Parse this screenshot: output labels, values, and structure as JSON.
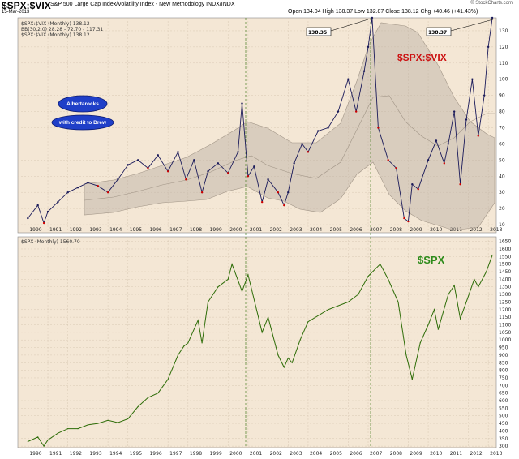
{
  "header": {
    "title": "$SPX:$VIX",
    "subtitle": "S&P 500 Large Cap Index/Volatility Index - New Methodology  INDX/INDX",
    "date": "15-Mar-2013",
    "ohlc": "Open 134.04  High 138.37  Low 132.87  Close 138.12  Chg +40.46 (+41.43%)",
    "credit": "© StockCharts.com"
  },
  "colors": {
    "background": "#f4e7d5",
    "price_line_top": "#1a1a5a",
    "down_bar": "#cc0000",
    "bollinger_fill": "#b9ada2",
    "bollinger_line": "#a09486",
    "spx_line": "#2e6d08",
    "title_red": "#cc1111",
    "title_green": "#2e8b1b",
    "oval_blue": "#1f3fc8",
    "oval_text": "#ffffff"
  },
  "chart_data": [
    {
      "type": "line",
      "title": "$SPX:$VIX",
      "legend": [
        "$SPX:$VIX (Monthly) 138.12",
        "BB(30,2.0) 28.28 - 72.70 - 117.31",
        "$SPX:$VIX (Monthly) 138.12"
      ],
      "annotations": [
        "138.35",
        "138.37",
        "Albertarocks",
        "with credit to Drew",
        "$SPX:$VIX"
      ],
      "x_ticks": [
        "1990",
        "1991",
        "1992",
        "1993",
        "1994",
        "1995",
        "1996",
        "1997",
        "1998",
        "1999",
        "2000",
        "2001",
        "2002",
        "2003",
        "2004",
        "2005",
        "2006",
        "2007",
        "2008",
        "2009",
        "2010",
        "2011",
        "2012",
        "2013"
      ],
      "y_ticks": [
        10,
        20,
        30,
        40,
        50,
        60,
        70,
        80,
        90,
        100,
        110,
        120,
        130
      ],
      "ylim": [
        5,
        138
      ],
      "xlim": [
        1989.5,
        2013.4
      ],
      "series": [
        {
          "x": [
            1990.0,
            1990.5,
            1990.8,
            1991.0,
            1991.5,
            1992.0,
            1992.5,
            1993.0,
            1993.5,
            1994.0,
            1994.5,
            1995.0,
            1995.5,
            1996.0,
            1996.5,
            1997.0,
            1997.5,
            1997.9,
            1998.3,
            1998.7,
            1999.0,
            1999.5,
            2000.0,
            2000.5,
            2000.7,
            2001.0,
            2001.3,
            2001.7,
            2002.0,
            2002.5,
            2002.8,
            2003.0,
            2003.3,
            2003.7,
            2004.0,
            2004.5,
            2005.0,
            2005.5,
            2006.0,
            2006.4,
            2006.8,
            2007.0,
            2007.2,
            2007.5,
            2008.0,
            2008.4,
            2008.8,
            2009.0,
            2009.2,
            2009.5,
            2010.0,
            2010.4,
            2010.8,
            2011.0,
            2011.3,
            2011.6,
            2011.9,
            2012.2,
            2012.5,
            2012.8,
            2013.0,
            2013.2
          ],
          "values": [
            14,
            22,
            11,
            18,
            24,
            30,
            33,
            36,
            34,
            30,
            38,
            47,
            50,
            45,
            53,
            43,
            55,
            38,
            50,
            30,
            43,
            48,
            42,
            55,
            85,
            40,
            46,
            24,
            38,
            30,
            22,
            30,
            48,
            60,
            55,
            68,
            70,
            80,
            100,
            80,
            105,
            120,
            138,
            70,
            50,
            45,
            14,
            12,
            35,
            32,
            50,
            62,
            48,
            60,
            80,
            35,
            75,
            100,
            65,
            90,
            120,
            138
          ]
        }
      ]
    },
    {
      "type": "line",
      "title": "$SPX",
      "legend": [
        "$SPX (Monthly) 1560.70"
      ],
      "annotations": [
        "$SPX"
      ],
      "x_ticks": [
        "1990",
        "1991",
        "1992",
        "1993",
        "1994",
        "1995",
        "1996",
        "1997",
        "1998",
        "1999",
        "2000",
        "2001",
        "2002",
        "2003",
        "2004",
        "2005",
        "2006",
        "2007",
        "2008",
        "2009",
        "2010",
        "2011",
        "2012",
        "2013"
      ],
      "y_ticks": [
        300,
        350,
        400,
        450,
        500,
        550,
        600,
        650,
        700,
        750,
        800,
        850,
        900,
        950,
        1000,
        1050,
        1100,
        1150,
        1200,
        1250,
        1300,
        1350,
        1400,
        1450,
        1500,
        1550,
        1600,
        1650
      ],
      "ylim": [
        290,
        1680
      ],
      "xlim": [
        1989.5,
        2013.4
      ],
      "series": [
        {
          "x": [
            1990.0,
            1990.5,
            1990.8,
            1991.0,
            1991.5,
            1992.0,
            1992.5,
            1993.0,
            1993.5,
            1994.0,
            1994.5,
            1995.0,
            1995.5,
            1996.0,
            1996.5,
            1997.0,
            1997.5,
            1997.8,
            1998.0,
            1998.5,
            1998.7,
            1999.0,
            1999.5,
            2000.0,
            2000.2,
            2000.7,
            2001.0,
            2001.7,
            2002.0,
            2002.5,
            2002.8,
            2003.0,
            2003.2,
            2003.6,
            2004.0,
            2005.0,
            2006.0,
            2006.5,
            2007.0,
            2007.6,
            2007.8,
            2008.0,
            2008.5,
            2008.9,
            2009.2,
            2009.6,
            2010.0,
            2010.3,
            2010.5,
            2011.0,
            2011.3,
            2011.6,
            2011.9,
            2012.3,
            2012.5,
            2012.9,
            2013.2
          ],
          "values": [
            330,
            360,
            300,
            340,
            385,
            415,
            415,
            440,
            450,
            470,
            455,
            480,
            560,
            620,
            650,
            740,
            900,
            960,
            980,
            1130,
            980,
            1250,
            1350,
            1400,
            1500,
            1320,
            1430,
            1050,
            1150,
            900,
            820,
            880,
            850,
            1000,
            1120,
            1200,
            1250,
            1300,
            1420,
            1500,
            1450,
            1400,
            1250,
            900,
            740,
            980,
            1100,
            1200,
            1070,
            1300,
            1360,
            1140,
            1250,
            1400,
            1350,
            1450,
            1560
          ]
        }
      ]
    }
  ]
}
